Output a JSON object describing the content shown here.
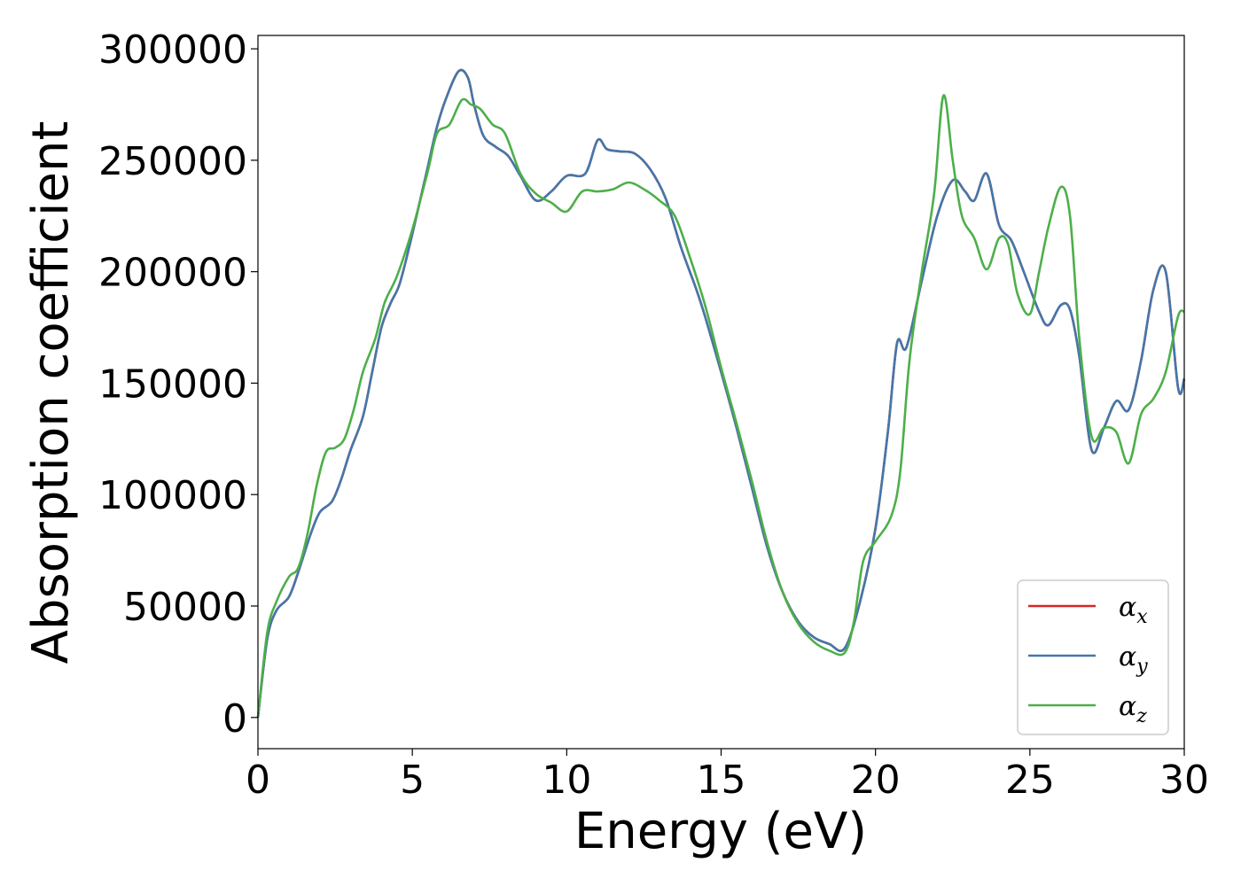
{
  "chart_data": {
    "type": "line",
    "xlabel": "Energy (eV)",
    "ylabel": "Absorption coefficient",
    "xlim": [
      0,
      30
    ],
    "ylim": [
      -14000,
      306000
    ],
    "xticks": [
      0,
      5,
      10,
      15,
      20,
      25,
      30
    ],
    "yticks": [
      0,
      50000,
      100000,
      150000,
      200000,
      250000,
      300000
    ],
    "grid": false,
    "legend_position": "lower-right",
    "series": [
      {
        "name": "α",
        "subscript": "x",
        "color": "#d62728",
        "points": [
          [
            0,
            0
          ],
          [
            0.3,
            35000
          ],
          [
            0.6,
            48000
          ],
          [
            1.0,
            54000
          ],
          [
            1.3,
            65000
          ],
          [
            1.7,
            82000
          ],
          [
            2.0,
            92000
          ],
          [
            2.4,
            97000
          ],
          [
            2.7,
            107000
          ],
          [
            3.0,
            120000
          ],
          [
            3.4,
            135000
          ],
          [
            3.7,
            155000
          ],
          [
            4.0,
            175000
          ],
          [
            4.3,
            186000
          ],
          [
            4.6,
            195000
          ],
          [
            5.0,
            217000
          ],
          [
            5.5,
            247000
          ],
          [
            5.8,
            265000
          ],
          [
            6.1,
            278000
          ],
          [
            6.5,
            290000
          ],
          [
            6.8,
            287000
          ],
          [
            7.0,
            275000
          ],
          [
            7.3,
            261000
          ],
          [
            7.7,
            256000
          ],
          [
            8.1,
            252000
          ],
          [
            8.5,
            243000
          ],
          [
            9.0,
            232000
          ],
          [
            9.5,
            236000
          ],
          [
            10.0,
            243000
          ],
          [
            10.6,
            244000
          ],
          [
            11.0,
            259000
          ],
          [
            11.3,
            255000
          ],
          [
            11.7,
            254000
          ],
          [
            12.2,
            253000
          ],
          [
            12.7,
            246000
          ],
          [
            13.2,
            233000
          ],
          [
            13.7,
            211000
          ],
          [
            14.2,
            192000
          ],
          [
            14.5,
            179000
          ],
          [
            15.0,
            155000
          ],
          [
            15.5,
            130000
          ],
          [
            16.0,
            103000
          ],
          [
            16.5,
            76000
          ],
          [
            17.0,
            56000
          ],
          [
            17.5,
            43000
          ],
          [
            18.0,
            36000
          ],
          [
            18.5,
            33000
          ],
          [
            19.0,
            31000
          ],
          [
            19.5,
            52000
          ],
          [
            20.0,
            85000
          ],
          [
            20.4,
            128000
          ],
          [
            20.7,
            168000
          ],
          [
            21.0,
            166000
          ],
          [
            21.5,
            196000
          ],
          [
            22.0,
            225000
          ],
          [
            22.5,
            241000
          ],
          [
            22.9,
            236000
          ],
          [
            23.2,
            232000
          ],
          [
            23.6,
            244000
          ],
          [
            24.0,
            221000
          ],
          [
            24.4,
            214000
          ],
          [
            24.8,
            200000
          ],
          [
            25.3,
            182000
          ],
          [
            25.6,
            176000
          ],
          [
            26.0,
            185000
          ],
          [
            26.3,
            183000
          ],
          [
            26.6,
            162000
          ],
          [
            27.0,
            120000
          ],
          [
            27.4,
            130000
          ],
          [
            27.8,
            142000
          ],
          [
            28.2,
            138000
          ],
          [
            28.6,
            160000
          ],
          [
            29.0,
            192000
          ],
          [
            29.4,
            200000
          ],
          [
            29.8,
            148000
          ],
          [
            30.0,
            152000
          ]
        ]
      },
      {
        "name": "α",
        "subscript": "y",
        "color": "#4477aa",
        "points": [
          [
            0,
            0
          ],
          [
            0.3,
            35000
          ],
          [
            0.6,
            48000
          ],
          [
            1.0,
            54000
          ],
          [
            1.3,
            65000
          ],
          [
            1.7,
            82000
          ],
          [
            2.0,
            92000
          ],
          [
            2.4,
            97000
          ],
          [
            2.7,
            107000
          ],
          [
            3.0,
            120000
          ],
          [
            3.4,
            135000
          ],
          [
            3.7,
            155000
          ],
          [
            4.0,
            175000
          ],
          [
            4.3,
            186000
          ],
          [
            4.6,
            195000
          ],
          [
            5.0,
            217000
          ],
          [
            5.5,
            247000
          ],
          [
            5.8,
            265000
          ],
          [
            6.1,
            278000
          ],
          [
            6.5,
            290000
          ],
          [
            6.8,
            287000
          ],
          [
            7.0,
            275000
          ],
          [
            7.3,
            261000
          ],
          [
            7.7,
            256000
          ],
          [
            8.1,
            252000
          ],
          [
            8.5,
            243000
          ],
          [
            9.0,
            232000
          ],
          [
            9.5,
            236000
          ],
          [
            10.0,
            243000
          ],
          [
            10.6,
            244000
          ],
          [
            11.0,
            259000
          ],
          [
            11.3,
            255000
          ],
          [
            11.7,
            254000
          ],
          [
            12.2,
            253000
          ],
          [
            12.7,
            246000
          ],
          [
            13.2,
            233000
          ],
          [
            13.7,
            211000
          ],
          [
            14.2,
            192000
          ],
          [
            14.5,
            179000
          ],
          [
            15.0,
            155000
          ],
          [
            15.5,
            130000
          ],
          [
            16.0,
            103000
          ],
          [
            16.5,
            76000
          ],
          [
            17.0,
            56000
          ],
          [
            17.5,
            43000
          ],
          [
            18.0,
            36000
          ],
          [
            18.5,
            33000
          ],
          [
            19.0,
            31000
          ],
          [
            19.5,
            52000
          ],
          [
            20.0,
            85000
          ],
          [
            20.4,
            128000
          ],
          [
            20.7,
            168000
          ],
          [
            21.0,
            166000
          ],
          [
            21.5,
            196000
          ],
          [
            22.0,
            225000
          ],
          [
            22.5,
            241000
          ],
          [
            22.9,
            236000
          ],
          [
            23.2,
            232000
          ],
          [
            23.6,
            244000
          ],
          [
            24.0,
            221000
          ],
          [
            24.4,
            214000
          ],
          [
            24.8,
            200000
          ],
          [
            25.3,
            182000
          ],
          [
            25.6,
            176000
          ],
          [
            26.0,
            185000
          ],
          [
            26.3,
            183000
          ],
          [
            26.6,
            162000
          ],
          [
            27.0,
            120000
          ],
          [
            27.4,
            130000
          ],
          [
            27.8,
            142000
          ],
          [
            28.2,
            138000
          ],
          [
            28.6,
            160000
          ],
          [
            29.0,
            192000
          ],
          [
            29.4,
            200000
          ],
          [
            29.8,
            148000
          ],
          [
            30.0,
            152000
          ]
        ]
      },
      {
        "name": "α",
        "subscript": "z",
        "color": "#4daf4a",
        "points": [
          [
            0,
            0
          ],
          [
            0.3,
            38000
          ],
          [
            0.6,
            52000
          ],
          [
            1.0,
            63000
          ],
          [
            1.3,
            67000
          ],
          [
            1.6,
            82000
          ],
          [
            1.9,
            104000
          ],
          [
            2.2,
            119000
          ],
          [
            2.5,
            121000
          ],
          [
            2.8,
            125000
          ],
          [
            3.1,
            138000
          ],
          [
            3.4,
            155000
          ],
          [
            3.8,
            170000
          ],
          [
            4.1,
            186000
          ],
          [
            4.5,
            198000
          ],
          [
            5.0,
            219000
          ],
          [
            5.5,
            245000
          ],
          [
            5.8,
            262000
          ],
          [
            6.2,
            266000
          ],
          [
            6.6,
            277000
          ],
          [
            6.9,
            275000
          ],
          [
            7.2,
            273000
          ],
          [
            7.6,
            266000
          ],
          [
            8.0,
            262000
          ],
          [
            8.5,
            244000
          ],
          [
            9.0,
            235000
          ],
          [
            9.5,
            231000
          ],
          [
            10.0,
            227000
          ],
          [
            10.5,
            236000
          ],
          [
            11.0,
            236000
          ],
          [
            11.5,
            237000
          ],
          [
            12.0,
            240000
          ],
          [
            12.5,
            237000
          ],
          [
            13.0,
            232000
          ],
          [
            13.5,
            225000
          ],
          [
            14.0,
            206000
          ],
          [
            14.5,
            184000
          ],
          [
            15.0,
            157000
          ],
          [
            15.5,
            132000
          ],
          [
            16.0,
            106000
          ],
          [
            16.5,
            78000
          ],
          [
            17.0,
            56000
          ],
          [
            17.5,
            42000
          ],
          [
            18.0,
            34000
          ],
          [
            18.5,
            30000
          ],
          [
            19.0,
            29000
          ],
          [
            19.3,
            43000
          ],
          [
            19.6,
            70000
          ],
          [
            20.0,
            79000
          ],
          [
            20.5,
            90000
          ],
          [
            20.8,
            110000
          ],
          [
            21.1,
            160000
          ],
          [
            21.5,
            200000
          ],
          [
            21.9,
            235000
          ],
          [
            22.2,
            279000
          ],
          [
            22.5,
            250000
          ],
          [
            22.8,
            225000
          ],
          [
            23.2,
            215000
          ],
          [
            23.6,
            201000
          ],
          [
            24.0,
            215000
          ],
          [
            24.3,
            212000
          ],
          [
            24.6,
            190000
          ],
          [
            25.0,
            181000
          ],
          [
            25.3,
            200000
          ],
          [
            25.6,
            220000
          ],
          [
            26.0,
            238000
          ],
          [
            26.3,
            225000
          ],
          [
            26.6,
            170000
          ],
          [
            27.0,
            126000
          ],
          [
            27.4,
            130000
          ],
          [
            27.8,
            128000
          ],
          [
            28.2,
            114000
          ],
          [
            28.6,
            136000
          ],
          [
            29.0,
            143000
          ],
          [
            29.4,
            155000
          ],
          [
            29.8,
            180000
          ],
          [
            30.0,
            182000
          ]
        ]
      }
    ]
  }
}
